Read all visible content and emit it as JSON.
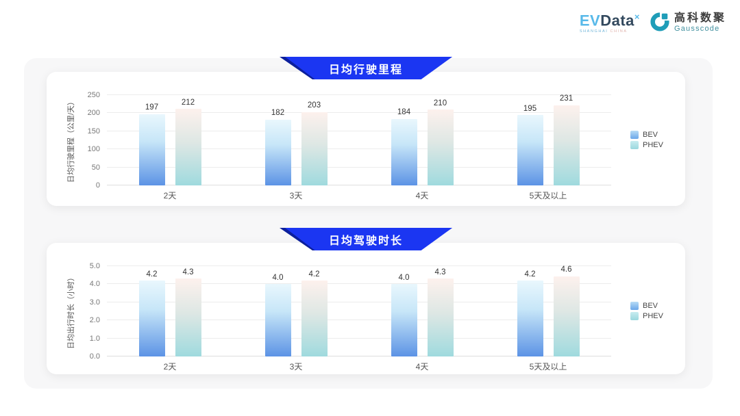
{
  "header": {
    "evdata": {
      "ev": "EV",
      "data": "Data",
      "sup": "×",
      "tagline_left": "SHANGHAI",
      "tagline_right": "CHINA"
    },
    "gausscode": {
      "name_cn": "高科数聚",
      "name_en": "Gausscode"
    }
  },
  "colors": {
    "banner_blue": "#1b36f2",
    "banner_fold": "#0c1f9c",
    "bev_gradient_top": "#e9f7fd",
    "bev_gradient_bottom": "#5c93e5",
    "phev_gradient_top": "#fdf1ed",
    "phev_gradient_bottom": "#9fdade",
    "container_bg": "#f7f7f8",
    "card_bg": "#ffffff",
    "gausscode_teal": "#1f9db8"
  },
  "chart_data": [
    {
      "type": "bar",
      "title": "日均行驶里程",
      "xlabel": "",
      "ylabel": "日均行驶里程（公里/天）",
      "ylim": [
        0,
        250
      ],
      "grid": true,
      "legend_position": "right",
      "y_ticks": [
        {
          "value": 0,
          "label": "0"
        },
        {
          "value": 50,
          "label": "50"
        },
        {
          "value": 100,
          "label": "100"
        },
        {
          "value": 150,
          "label": "150"
        },
        {
          "value": 200,
          "label": "200"
        },
        {
          "value": 250,
          "label": "250"
        }
      ],
      "categories": [
        "2天",
        "3天",
        "4天",
        "5天及以上"
      ],
      "series": [
        {
          "name": "BEV",
          "values": [
            197,
            182,
            184,
            195
          ],
          "labels": [
            "197",
            "182",
            "184",
            "195"
          ]
        },
        {
          "name": "PHEV",
          "values": [
            212,
            203,
            210,
            231
          ],
          "labels": [
            "212",
            "203",
            "210",
            "231"
          ]
        }
      ]
    },
    {
      "type": "bar",
      "title": "日均驾驶时长",
      "xlabel": "",
      "ylabel": "日均出行时长（小时）",
      "ylim": [
        0,
        5
      ],
      "grid": true,
      "legend_position": "right",
      "y_ticks": [
        {
          "value": 0,
          "label": "0.0"
        },
        {
          "value": 1,
          "label": "1.0"
        },
        {
          "value": 2,
          "label": "2.0"
        },
        {
          "value": 3,
          "label": "3.0"
        },
        {
          "value": 4,
          "label": "4.0"
        },
        {
          "value": 5,
          "label": "5.0"
        }
      ],
      "categories": [
        "2天",
        "3天",
        "4天",
        "5天及以上"
      ],
      "series": [
        {
          "name": "BEV",
          "values": [
            4.2,
            4.0,
            4.0,
            4.2
          ],
          "labels": [
            "4.2",
            "4.0",
            "4.0",
            "4.2"
          ]
        },
        {
          "name": "PHEV",
          "values": [
            4.3,
            4.2,
            4.3,
            4.6
          ],
          "labels": [
            "4.3",
            "4.2",
            "4.3",
            "4.6"
          ]
        }
      ]
    }
  ]
}
